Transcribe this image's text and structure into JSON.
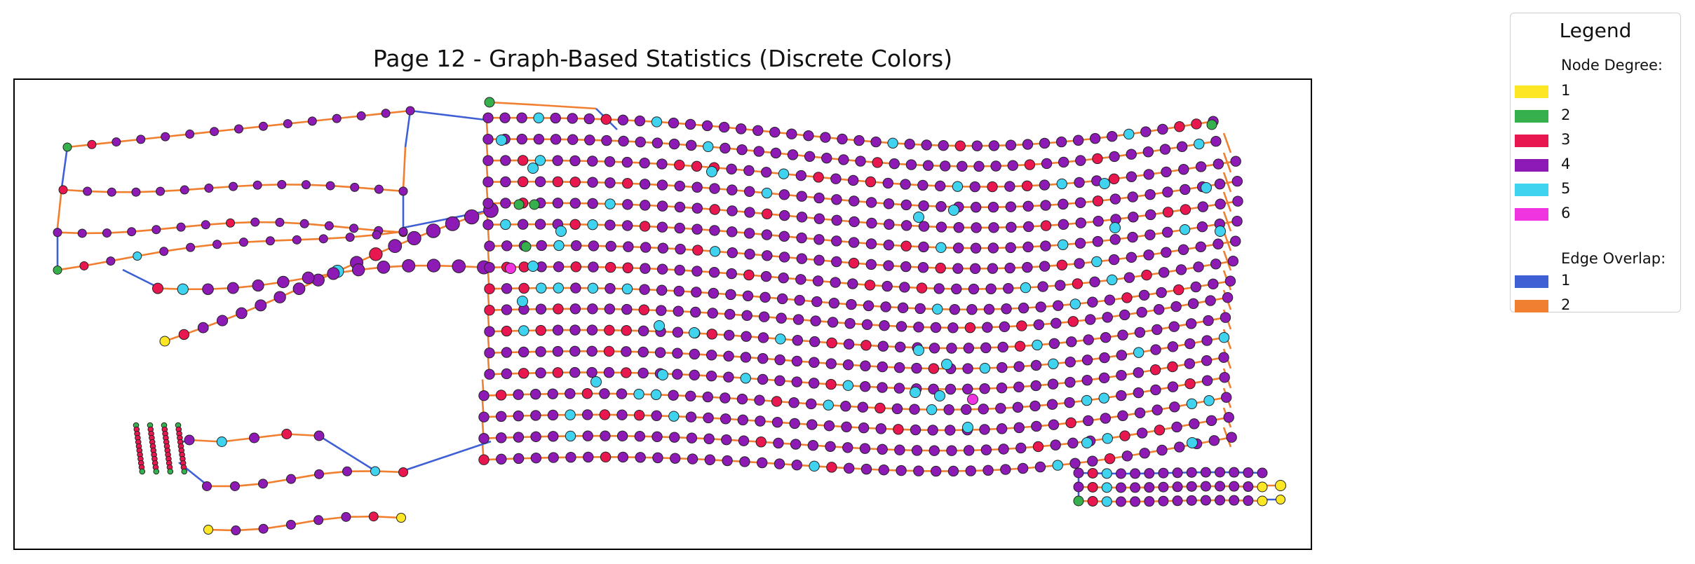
{
  "title": "Page 12 - Graph-Based Statistics (Discrete Colors)",
  "legend": {
    "title": "Legend",
    "node_degree_heading": "Node Degree:",
    "edge_overlap_heading": "Edge Overlap:",
    "node_degrees": [
      {
        "label": "1",
        "color": "#fde725"
      },
      {
        "label": "2",
        "color": "#35b04c"
      },
      {
        "label": "3",
        "color": "#e8174f"
      },
      {
        "label": "4",
        "color": "#8e1ab5"
      },
      {
        "label": "5",
        "color": "#3fd3f0"
      },
      {
        "label": "6",
        "color": "#f035e0"
      }
    ],
    "edge_overlaps": [
      {
        "label": "1",
        "color": "#3f5fd4"
      },
      {
        "label": "2",
        "color": "#f07f30"
      }
    ]
  }
}
